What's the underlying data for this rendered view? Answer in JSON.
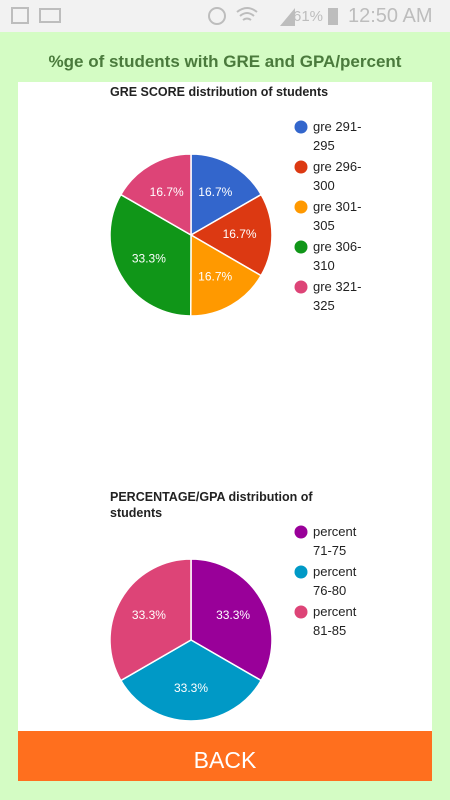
{
  "status_bar": {
    "battery": "61%",
    "time": "12:50 AM"
  },
  "header": {
    "title": "%ge of students with GRE and GPA/percent"
  },
  "chart_data": [
    {
      "type": "pie",
      "title": "GRE SCORE distribution of students",
      "categories": [
        "gre 291-295",
        "gre 296-300",
        "gre 301-305",
        "gre 306-310",
        "gre 321-325"
      ],
      "values": [
        16.7,
        16.7,
        16.7,
        33.3,
        16.7
      ],
      "value_labels": [
        "16.7%",
        "16.7%",
        "16.7%",
        "33.3%",
        "16.7%"
      ],
      "colors": [
        "#3366cc",
        "#dc3912",
        "#ff9900",
        "#109618",
        "#dd4477"
      ]
    },
    {
      "type": "pie",
      "title": "PERCENTAGE/GPA distribution of students",
      "categories": [
        "percent 71-75",
        "percent 76-80",
        "percent 81-85"
      ],
      "values": [
        33.3,
        33.3,
        33.3
      ],
      "value_labels": [
        "33.3%",
        "33.3%",
        "33.3%"
      ],
      "colors": [
        "#990099",
        "#0099c6",
        "#dd4477"
      ]
    }
  ],
  "button": {
    "label": "BACK"
  }
}
